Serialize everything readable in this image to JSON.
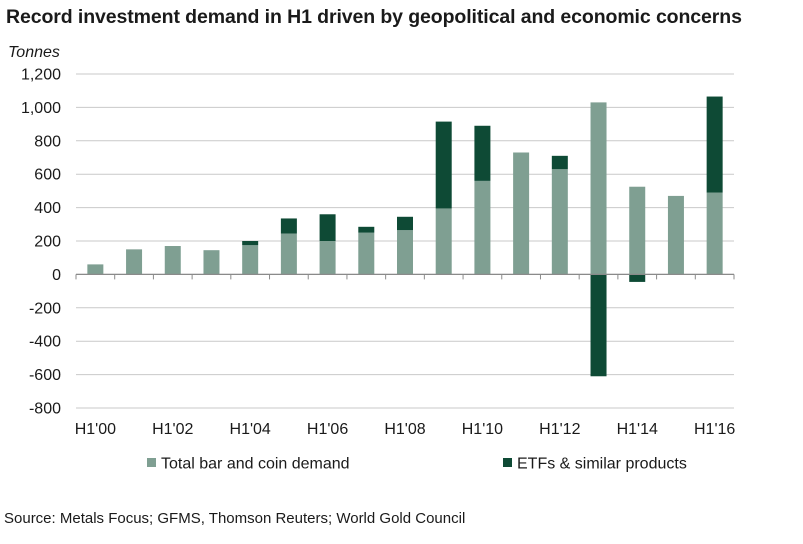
{
  "header": {
    "title": "Record investment demand in H1 driven by geopolitical and economic concerns"
  },
  "footer": {
    "source": "Source: Metals Focus; GFMS, Thomson Reuters; World Gold Council"
  },
  "chart_data": {
    "type": "bar",
    "stacked": true,
    "title": "Record investment demand in H1 driven by geopolitical and economic concerns",
    "ylabel": "Tonnes",
    "xlabel": "",
    "ylim": [
      -800,
      1200
    ],
    "yticks": [
      -800,
      -600,
      -400,
      -200,
      0,
      200,
      400,
      600,
      800,
      1000,
      1200
    ],
    "ytick_labels": [
      "-800",
      "-600",
      "-400",
      "-200",
      "0",
      "200",
      "400",
      "600",
      "800",
      "1,000",
      "1,200"
    ],
    "categories": [
      "H1'00",
      "H1'01",
      "H1'02",
      "H1'03",
      "H1'04",
      "H1'05",
      "H1'06",
      "H1'07",
      "H1'08",
      "H1'09",
      "H1'10",
      "H1'11",
      "H1'12",
      "H1'13",
      "H1'14",
      "H1'15",
      "H1'16"
    ],
    "xtick_labels": [
      "H1'00",
      "",
      "H1'02",
      "",
      "H1'04",
      "",
      "H1'06",
      "",
      "H1'08",
      "",
      "H1'10",
      "",
      "H1'12",
      "",
      "H1'14",
      "",
      "H1'16"
    ],
    "series": [
      {
        "name": "Total bar and coin demand",
        "color": "#7f9f92",
        "values": [
          60,
          150,
          170,
          145,
          175,
          245,
          200,
          250,
          265,
          395,
          560,
          730,
          630,
          1030,
          525,
          470,
          490
        ]
      },
      {
        "name": "ETFs & similar products",
        "color": "#0e4a35",
        "values": [
          0,
          0,
          0,
          0,
          25,
          90,
          160,
          35,
          80,
          520,
          330,
          0,
          80,
          -610,
          -45,
          0,
          575
        ]
      }
    ],
    "grid": true,
    "legend_position": "bottom"
  }
}
